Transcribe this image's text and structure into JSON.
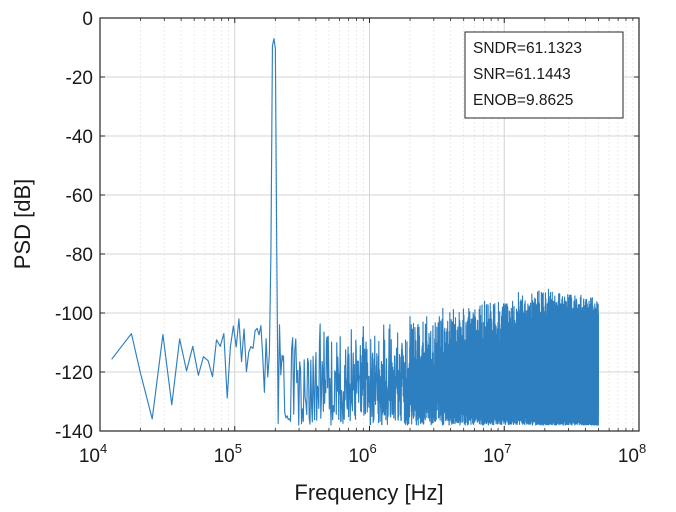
{
  "chart_data": {
    "type": "line",
    "title": "",
    "xlabel": "Frequency [Hz]",
    "ylabel": "PSD [dB]",
    "xscale": "log",
    "xlim": [
      10000,
      100000000
    ],
    "ylim": [
      -140,
      0
    ],
    "grid": true,
    "minor_grid": true,
    "x_ticks": [
      {
        "value": 10000,
        "base": "10",
        "exp": "4"
      },
      {
        "value": 100000,
        "base": "10",
        "exp": "5"
      },
      {
        "value": 1000000,
        "base": "10",
        "exp": "6"
      },
      {
        "value": 10000000,
        "base": "10",
        "exp": "7"
      },
      {
        "value": 100000000,
        "base": "10",
        "exp": "8"
      }
    ],
    "y_ticks": [
      "0",
      "-20",
      "-40",
      "-60",
      "-80",
      "-100",
      "-120",
      "-140"
    ],
    "y_tick_values": [
      0,
      -20,
      -40,
      -60,
      -80,
      -100,
      -120,
      -140
    ],
    "line_color": "#2e7fc0",
    "signal": {
      "freq": 195000,
      "peak_db": -7
    },
    "series": [
      {
        "points": [
          [
            12200,
            -115.7
          ],
          [
            17100,
            -107.0
          ],
          [
            20000,
            -120.5
          ],
          [
            24400,
            -135.9
          ],
          [
            29300,
            -107.3
          ],
          [
            34100,
            -131.1
          ],
          [
            39000,
            -108.8
          ],
          [
            43900,
            -119.6
          ],
          [
            48800,
            -111.3
          ],
          [
            53700,
            -121.1
          ],
          [
            58600,
            -114.8
          ],
          [
            63500,
            -116.2
          ],
          [
            68400,
            -121.6
          ],
          [
            73200,
            -109.1
          ],
          [
            78100,
            -111.3
          ],
          [
            83000,
            -107.0
          ],
          [
            87900,
            -128.8
          ],
          [
            92800,
            -111.5
          ],
          [
            97700,
            -104.4
          ],
          [
            102500,
            -111.5
          ],
          [
            107400,
            -102.0
          ],
          [
            112300,
            -116.5
          ],
          [
            117200,
            -105.4
          ],
          [
            122100,
            -119.9
          ],
          [
            127000,
            -113.3
          ],
          [
            131800,
            -111.4
          ],
          [
            136700,
            -112.0
          ],
          [
            141600,
            -106.0
          ],
          [
            146500,
            -105.2
          ],
          [
            151400,
            -107.4
          ],
          [
            156300,
            -104.3
          ],
          [
            161100,
            -114.3
          ],
          [
            166000,
            -126.9
          ],
          [
            170900,
            -108.7
          ],
          [
            175800,
            -121.7
          ],
          [
            180700,
            -113.8
          ],
          [
            185500,
            -79.8
          ],
          [
            190400,
            -9.5
          ],
          [
            195300,
            -7.0
          ],
          [
            200200,
            -10.5
          ],
          [
            205100,
            -80.2
          ],
          [
            210000,
            -137.5
          ],
          [
            214800,
            -104.0
          ],
          [
            219700,
            -121.0
          ],
          [
            224600,
            -114.3
          ],
          [
            229500,
            -116.5
          ]
        ],
        "noise": {
          "from_freq": 230000,
          "to_freq": 50000000,
          "step_freq": 4883,
          "floor_db": -113,
          "spread_db": 25,
          "min_db": -138,
          "max_db": -91,
          "rising_bump": {
            "center_freq": 18000000,
            "peak_db": -91
          }
        }
      }
    ],
    "annotation": {
      "lines": [
        "SNDR=61.1323",
        "SNR=61.1443",
        "ENOB=9.8625"
      ],
      "placement": "top-right"
    }
  }
}
